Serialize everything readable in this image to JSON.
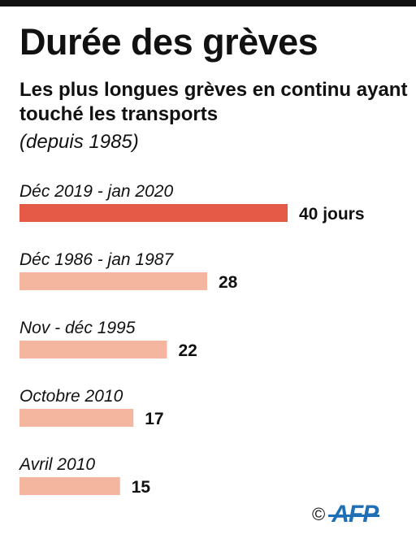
{
  "header": {
    "title": "Durée des grèves",
    "subtitle": "Les plus longues grèves en continu ayant touché les transports",
    "note": "(depuis 1985)"
  },
  "chart_data": {
    "type": "bar",
    "orientation": "horizontal",
    "categories": [
      "Déc 2019 - jan 2020",
      "Déc 1986 - jan 1987",
      "Nov - déc 1995",
      "Octobre 2010",
      "Avril 2010"
    ],
    "values": [
      40,
      28,
      22,
      17,
      15
    ],
    "value_labels": [
      "40 jours",
      "28",
      "22",
      "17",
      "15"
    ],
    "colors": [
      "#e55a46",
      "#f5b6a0",
      "#f5b6a0",
      "#f5b6a0",
      "#f5b6a0"
    ],
    "unit": "jours",
    "xlim": [
      0,
      40
    ],
    "grid": false,
    "legend": "none"
  },
  "footer": {
    "copyright": "©",
    "logo": "AFP",
    "logo_color": "#1e6fb5"
  }
}
